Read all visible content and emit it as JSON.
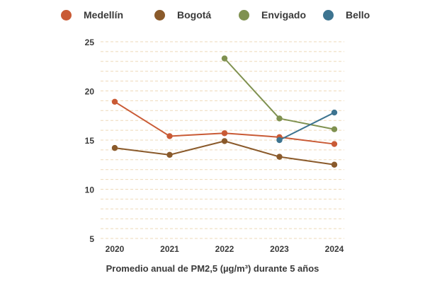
{
  "chart_data": {
    "type": "line",
    "title": "",
    "xlabel": "Promedio anual de PM2,5 (µg/m³) durante 5 años",
    "ylabel": "",
    "categories": [
      "2020",
      "2021",
      "2022",
      "2023",
      "2024"
    ],
    "ylim": [
      5,
      25
    ],
    "yticks": [
      5,
      10,
      15,
      20,
      25
    ],
    "grid": true,
    "legend_position": "top",
    "series": [
      {
        "name": "Medellín",
        "color": "#c95a35",
        "values": [
          18.9,
          15.4,
          15.7,
          15.3,
          14.6
        ]
      },
      {
        "name": "Bogotá",
        "color": "#8a5a2b",
        "values": [
          14.2,
          13.5,
          14.9,
          13.3,
          12.5
        ]
      },
      {
        "name": "Envigado",
        "color": "#7f9150",
        "values": [
          null,
          null,
          23.3,
          17.2,
          16.1
        ]
      },
      {
        "name": "Bello",
        "color": "#3d7490",
        "values": [
          null,
          null,
          null,
          15.0,
          17.8
        ]
      }
    ]
  }
}
